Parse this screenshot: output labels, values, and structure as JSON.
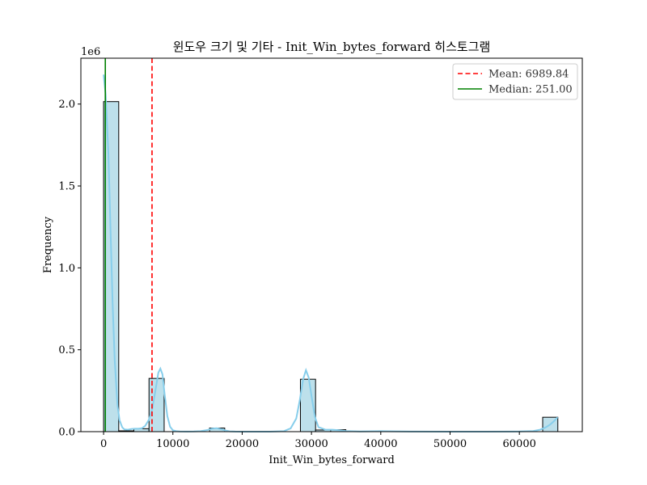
{
  "chart_data": {
    "type": "bar",
    "title": "윈도우 크기 및 기타 - Init_Win_bytes_forward 히스토그램",
    "xlabel": "Init_Win_bytes_forward",
    "ylabel": "Frequency",
    "y_scale_label": "1e6",
    "xlim": [
      -3277,
      69082
    ],
    "ylim": [
      0,
      2280000
    ],
    "x_ticks": [
      0,
      10000,
      20000,
      30000,
      40000,
      50000,
      60000
    ],
    "x_tick_labels": [
      "0",
      "10000",
      "20000",
      "30000",
      "40000",
      "50000",
      "60000"
    ],
    "y_ticks": [
      0,
      500000,
      1000000,
      1500000,
      2000000
    ],
    "y_tick_labels": [
      "0.0",
      "0.5",
      "1.0",
      "1.5",
      "2.0"
    ],
    "bin_width": 2185,
    "bins": [
      {
        "x0": 0,
        "count": 2015000
      },
      {
        "x0": 2185,
        "count": 5000
      },
      {
        "x0": 4370,
        "count": 18000
      },
      {
        "x0": 6555,
        "count": 325000
      },
      {
        "x0": 15295,
        "count": 22000
      },
      {
        "x0": 28405,
        "count": 320000
      },
      {
        "x0": 30590,
        "count": 10000
      },
      {
        "x0": 32775,
        "count": 12000
      },
      {
        "x0": 63365,
        "count": 88000
      }
    ],
    "kde": {
      "x": [
        0,
        300,
        700,
        1000,
        1300,
        1600,
        2000,
        2300,
        2700,
        3000,
        3500,
        4000,
        4500,
        5000,
        5500,
        6000,
        6500,
        7000,
        7500,
        7900,
        8200,
        8500,
        8800,
        9200,
        9600,
        10000,
        10500,
        11000,
        12000,
        13000,
        14000,
        15000,
        15600,
        16300,
        17000,
        17600,
        18200,
        19000,
        20000,
        22000,
        24000,
        26000,
        27000,
        27800,
        28300,
        28800,
        29200,
        29600,
        30000,
        30500,
        31000,
        32000,
        33000,
        34000,
        35000,
        37000,
        40000,
        42000,
        45000,
        50000,
        55000,
        60000,
        62000,
        63000,
        63800,
        64400,
        64900,
        65300,
        65535
      ],
      "y": [
        2180000,
        2060000,
        1690000,
        1240000,
        790000,
        440000,
        165000,
        70000,
        26000,
        14000,
        12000,
        16000,
        18000,
        18000,
        20000,
        35000,
        70000,
        135000,
        255000,
        360000,
        385000,
        350000,
        230000,
        95000,
        30000,
        8000,
        3000,
        1000,
        500,
        800,
        3000,
        10000,
        18000,
        21000,
        15000,
        7000,
        2000,
        400,
        0,
        0,
        0,
        3000,
        20000,
        80000,
        190000,
        320000,
        375000,
        330000,
        220000,
        90000,
        28000,
        12000,
        12000,
        9000,
        4000,
        1000,
        3000,
        2000,
        600,
        0,
        0,
        1000,
        4000,
        12000,
        26000,
        42000,
        60000,
        78000,
        88000
      ]
    },
    "mean": 6989.84,
    "median": 251.0,
    "legend": [
      {
        "label": "Mean: 6989.84",
        "color": "#ff0000",
        "style": "dashed"
      },
      {
        "label": "Median: 251.00",
        "color": "#008000",
        "style": "solid"
      }
    ],
    "legend_position": "top-right",
    "colors": {
      "bar_fill": "#add8e6",
      "bar_edge": "#000000",
      "kde": "#87ceeb"
    }
  }
}
